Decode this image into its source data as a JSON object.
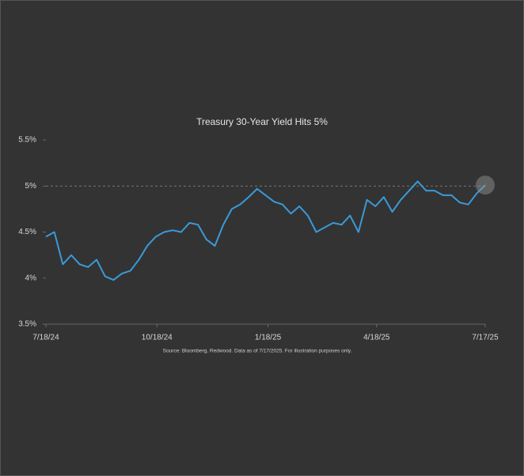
{
  "chart_data": {
    "type": "line",
    "title": "Treasury 30-Year Yield Hits 5%",
    "source": "Source: Bloomberg, Redwood. Data as of 7/17/2025.  For illustration purposes only.",
    "x": [
      "7/18/24",
      "7/25/24",
      "8/1/24",
      "8/8/24",
      "8/15/24",
      "8/22/24",
      "8/29/24",
      "9/5/24",
      "9/12/24",
      "9/19/24",
      "9/26/24",
      "10/3/24",
      "10/10/24",
      "10/17/24",
      "10/24/24",
      "10/31/24",
      "11/7/24",
      "11/14/24",
      "11/21/24",
      "11/28/24",
      "12/5/24",
      "12/12/24",
      "12/19/24",
      "12/26/24",
      "1/2/25",
      "1/9/25",
      "1/16/25",
      "1/23/25",
      "1/30/25",
      "2/6/25",
      "2/13/25",
      "2/20/25",
      "2/27/25",
      "3/6/25",
      "3/13/25",
      "3/20/25",
      "3/27/25",
      "4/3/25",
      "4/10/25",
      "4/17/25",
      "4/24/25",
      "5/1/25",
      "5/8/25",
      "5/15/25",
      "5/22/25",
      "5/29/25",
      "6/5/25",
      "6/12/25",
      "6/19/25",
      "6/26/25",
      "7/3/25",
      "7/10/25",
      "7/17/25"
    ],
    "series": [
      {
        "name": "Treasury 30-Year Yield",
        "color": "#3a9ad9",
        "values": [
          4.45,
          4.5,
          4.15,
          4.25,
          4.15,
          4.12,
          4.2,
          4.02,
          3.98,
          4.05,
          4.08,
          4.2,
          4.35,
          4.45,
          4.5,
          4.52,
          4.5,
          4.6,
          4.58,
          4.42,
          4.35,
          4.58,
          4.75,
          4.8,
          4.88,
          4.97,
          4.9,
          4.83,
          4.8,
          4.7,
          4.78,
          4.68,
          4.5,
          4.55,
          4.6,
          4.58,
          4.68,
          4.5,
          4.85,
          4.78,
          4.88,
          4.72,
          4.85,
          4.95,
          5.05,
          4.95,
          4.95,
          4.9,
          4.9,
          4.82,
          4.8,
          4.92,
          5.01
        ]
      }
    ],
    "xticks": [
      "7/18/24",
      "10/18/24",
      "1/18/25",
      "4/18/25",
      "7/17/25"
    ],
    "ylim": [
      3.5,
      5.5
    ],
    "yticks": [
      {
        "value": 3.5,
        "label": "3.5%"
      },
      {
        "value": 4,
        "label": "4%"
      },
      {
        "value": 4.5,
        "label": "4.5%"
      },
      {
        "value": 5,
        "label": "5%"
      },
      {
        "value": 5.5,
        "label": "5.5%"
      }
    ],
    "reference_line": 5,
    "grid": false
  }
}
